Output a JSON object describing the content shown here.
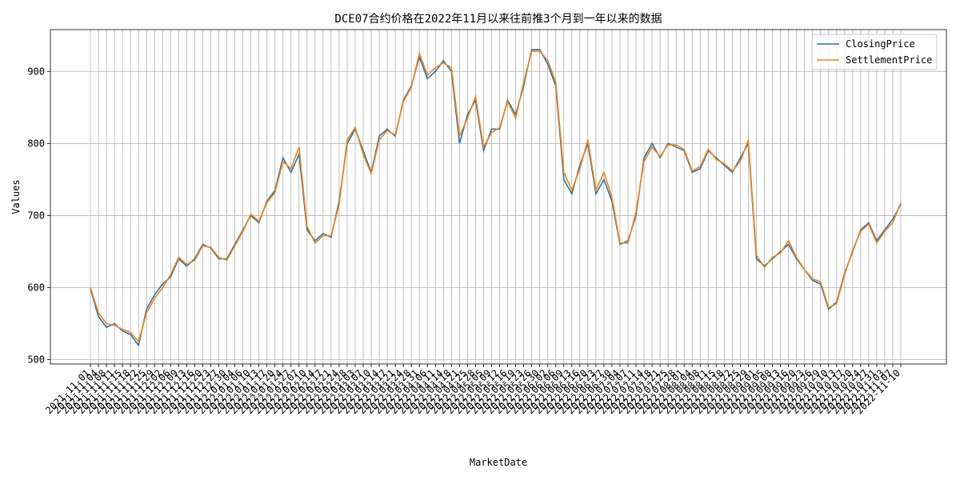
{
  "chart_data": {
    "type": "line",
    "title": "DCE07合约价格在2022年11月以来往前推3个月到一年以来的数据",
    "x_label": "MarketDate",
    "y_label": "Values",
    "categories": [
      "2021-11-01",
      "2021-11-04",
      "2021-11-08",
      "2021-11-11",
      "2021-11-15",
      "2021-11-18",
      "2021-11-22",
      "2021-11-25",
      "2021-11-29",
      "2021-12-02",
      "2021-12-06",
      "2021-12-09",
      "2021-12-13",
      "2021-12-16",
      "2021-12-20",
      "2021-12-23",
      "2021-12-27",
      "2021-12-30",
      "2022-01-04",
      "2022-01-06",
      "2022-01-10",
      "2022-01-13",
      "2022-01-17",
      "2022-01-20",
      "2022-01-24",
      "2022-01-27",
      "2022-02-07",
      "2022-02-10",
      "2022-02-14",
      "2022-02-17",
      "2022-02-21",
      "2022-02-24",
      "2022-02-28",
      "2022-03-03",
      "2022-03-07",
      "2022-03-10",
      "2022-03-14",
      "2022-03-17",
      "2022-03-21",
      "2022-03-24",
      "2022-03-28",
      "2022-03-31",
      "2022-04-06",
      "2022-04-11",
      "2022-04-14",
      "2022-04-18",
      "2022-04-21",
      "2022-04-25",
      "2022-04-28",
      "2022-05-05",
      "2022-05-09",
      "2022-05-12",
      "2022-05-16",
      "2022-05-19",
      "2022-05-23",
      "2022-05-26",
      "2022-05-30",
      "2022-06-02",
      "2022-06-06",
      "2022-06-09",
      "2022-06-13",
      "2022-06-16",
      "2022-06-20",
      "2022-06-23",
      "2022-06-27",
      "2022-06-30",
      "2022-07-04",
      "2022-07-07",
      "2022-07-11",
      "2022-07-14",
      "2022-07-18",
      "2022-07-21",
      "2022-07-25",
      "2022-07-28",
      "2022-08-01",
      "2022-08-04",
      "2022-08-08",
      "2022-08-11",
      "2022-08-15",
      "2022-08-18",
      "2022-08-22",
      "2022-08-25",
      "2022-08-29",
      "2022-09-01",
      "2022-09-05",
      "2022-09-08",
      "2022-09-13",
      "2022-09-16",
      "2022-09-20",
      "2022-09-23",
      "2022-09-26",
      "2022-09-29",
      "2022-10-10",
      "2022-10-13",
      "2022-10-17",
      "2022-10-20",
      "2022-10-24",
      "2022-10-27",
      "2022-10-31",
      "2022-11-03",
      "2022-11-07",
      "2022-11-10"
    ],
    "series": [
      {
        "name": "ClosingPrice",
        "color": "#1f77b4",
        "values": [
          598,
          560,
          545,
          550,
          540,
          535,
          520,
          570,
          590,
          605,
          615,
          640,
          630,
          640,
          660,
          655,
          640,
          640,
          660,
          680,
          700,
          690,
          720,
          735,
          780,
          760,
          785,
          680,
          665,
          675,
          670,
          720,
          800,
          820,
          790,
          760,
          810,
          820,
          810,
          860,
          880,
          920,
          890,
          900,
          915,
          900,
          800,
          840,
          860,
          790,
          820,
          820,
          860,
          840,
          880,
          930,
          930,
          910,
          880,
          750,
          730,
          770,
          800,
          730,
          750,
          720,
          660,
          665,
          700,
          780,
          800,
          780,
          800,
          795,
          790,
          760,
          765,
          790,
          780,
          770,
          760,
          780,
          800,
          640,
          630,
          640,
          650,
          660,
          640,
          625,
          610,
          605,
          570,
          580,
          620,
          650,
          680,
          690,
          665,
          680,
          695,
          715
        ]
      },
      {
        "name": "SettlementPrice",
        "color": "#ff7f0e",
        "values": [
          600,
          565,
          550,
          548,
          542,
          538,
          525,
          565,
          585,
          600,
          618,
          642,
          632,
          638,
          658,
          656,
          642,
          638,
          658,
          678,
          702,
          692,
          718,
          732,
          775,
          765,
          795,
          685,
          662,
          672,
          672,
          715,
          805,
          822,
          785,
          758,
          805,
          818,
          812,
          858,
          878,
          925,
          895,
          905,
          912,
          905,
          810,
          835,
          865,
          795,
          815,
          822,
          858,
          835,
          885,
          928,
          928,
          915,
          885,
          760,
          735,
          765,
          805,
          735,
          760,
          725,
          662,
          662,
          705,
          775,
          795,
          782,
          798,
          798,
          792,
          762,
          768,
          792,
          778,
          772,
          762,
          775,
          805,
          645,
          628,
          642,
          648,
          665,
          642,
          625,
          612,
          608,
          572,
          578,
          618,
          652,
          678,
          688,
          662,
          678,
          690,
          718
        ]
      }
    ],
    "ylim": [
      494,
      958
    ],
    "yticks": [
      500,
      600,
      700,
      800,
      900
    ],
    "grid": true,
    "legend": "upper right"
  }
}
